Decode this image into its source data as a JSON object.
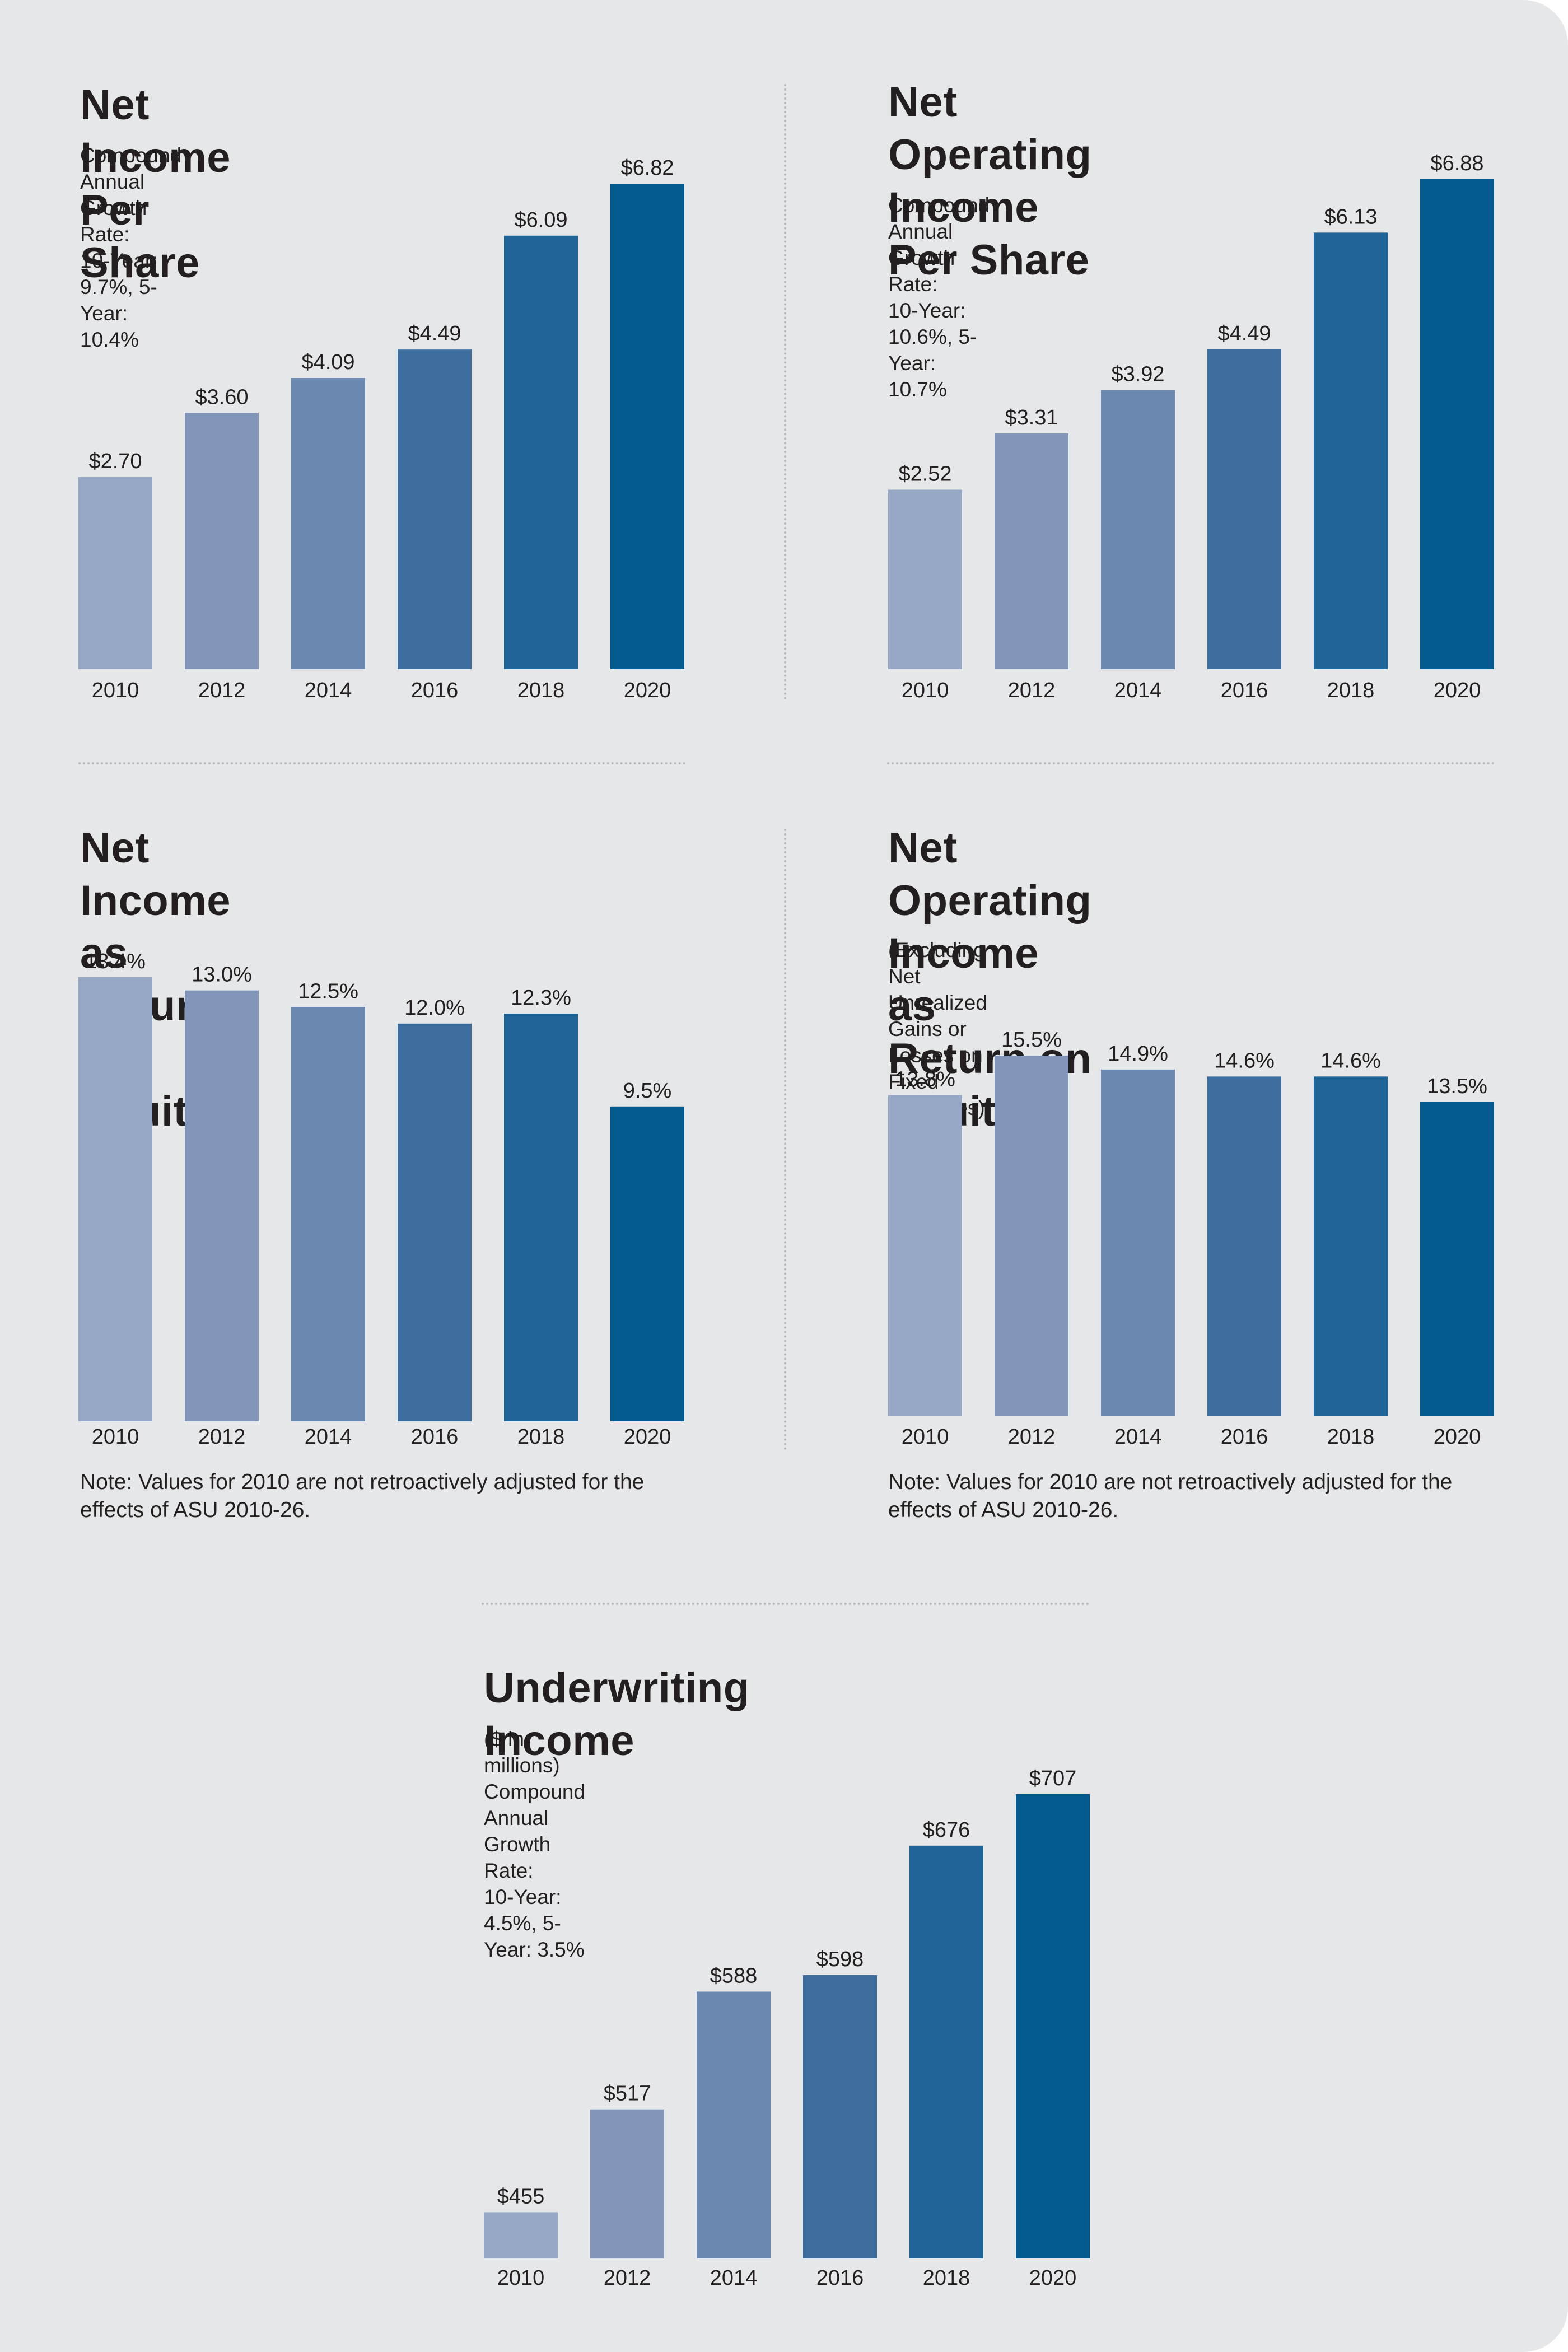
{
  "palette": [
    "#96a7c5",
    "#8196b9",
    "#6a88b0",
    "#3e6e9e",
    "#1f6497",
    "#035a8e"
  ],
  "panels": {
    "nips": {
      "title": "Net Income Per Share",
      "subtitle": "Compound Annual Growth Rate:\n10-Year: 9.7%, 5-Year: 10.4%"
    },
    "noips": {
      "title": "Net Operating Income\nPer Share",
      "subtitle": "Compound Annual Growth Rate:\n10-Year: 10.6%, 5-Year: 10.7%"
    },
    "niroe": {
      "title": "Net Income as\nReturn on Equity",
      "note": "Note: Values for 2010 are not retroactively adjusted for the effects of ASU 2010-26."
    },
    "noiroe": {
      "title": "Net Operating Income as\nReturn on Equity",
      "subtitle": "(Excluding Net Unrealized Gains or\nLosses on Fixed Maturities)",
      "note": "Note: Values for 2010 are not retroactively adjusted for the effects of ASU 2010-26."
    },
    "uw": {
      "title": "Underwriting Income",
      "subtitle": "($ in millions)\nCompound Annual Growth Rate:\n10-Year: 4.5%, 5-Year: 3.5%"
    }
  },
  "chart_data": [
    {
      "id": "nips",
      "type": "bar",
      "title": "Net Income Per Share",
      "categories": [
        "2010",
        "2012",
        "2014",
        "2016",
        "2018",
        "2020"
      ],
      "values": [
        2.7,
        3.6,
        4.09,
        4.49,
        6.09,
        6.82
      ],
      "labels": [
        "$2.70",
        "$3.60",
        "$4.09",
        "$4.49",
        "$6.09",
        "$6.82"
      ],
      "ylim": [
        0,
        6.82
      ],
      "xlabel": "",
      "ylabel": ""
    },
    {
      "id": "noips",
      "type": "bar",
      "title": "Net Operating Income Per Share",
      "categories": [
        "2010",
        "2012",
        "2014",
        "2016",
        "2018",
        "2020"
      ],
      "values": [
        2.52,
        3.31,
        3.92,
        4.49,
        6.13,
        6.88
      ],
      "labels": [
        "$2.52",
        "$3.31",
        "$3.92",
        "$4.49",
        "$6.13",
        "$6.88"
      ],
      "ylim": [
        0,
        6.88
      ],
      "xlabel": "",
      "ylabel": ""
    },
    {
      "id": "niroe",
      "type": "bar",
      "title": "Net Income as Return on Equity",
      "categories": [
        "2010",
        "2012",
        "2014",
        "2016",
        "2018",
        "2020"
      ],
      "values": [
        13.4,
        13.0,
        12.5,
        12.0,
        12.3,
        9.5
      ],
      "labels": [
        "13.4%",
        "13.0%",
        "12.5%",
        "12.0%",
        "12.3%",
        "9.5%"
      ],
      "ylim": [
        0,
        13.4
      ],
      "xlabel": "",
      "ylabel": ""
    },
    {
      "id": "noiroe",
      "type": "bar",
      "title": "Net Operating Income as Return on Equity",
      "categories": [
        "2010",
        "2012",
        "2014",
        "2016",
        "2018",
        "2020"
      ],
      "values": [
        13.8,
        15.5,
        14.9,
        14.6,
        14.6,
        13.5
      ],
      "labels": [
        "13.8%",
        "15.5%",
        "14.9%",
        "14.6%",
        "14.6%",
        "13.5%"
      ],
      "ylim": [
        0,
        15.5
      ],
      "xlabel": "",
      "ylabel": ""
    },
    {
      "id": "uw",
      "type": "bar",
      "title": "Underwriting Income ($ in millions)",
      "categories": [
        "2010",
        "2012",
        "2014",
        "2016",
        "2018",
        "2020"
      ],
      "values": [
        455,
        517,
        588,
        598,
        676,
        707
      ],
      "labels": [
        "$455",
        "$517",
        "$588",
        "$598",
        "$676",
        "$707"
      ],
      "ylim": [
        0,
        707
      ],
      "xlabel": "",
      "ylabel": ""
    }
  ]
}
